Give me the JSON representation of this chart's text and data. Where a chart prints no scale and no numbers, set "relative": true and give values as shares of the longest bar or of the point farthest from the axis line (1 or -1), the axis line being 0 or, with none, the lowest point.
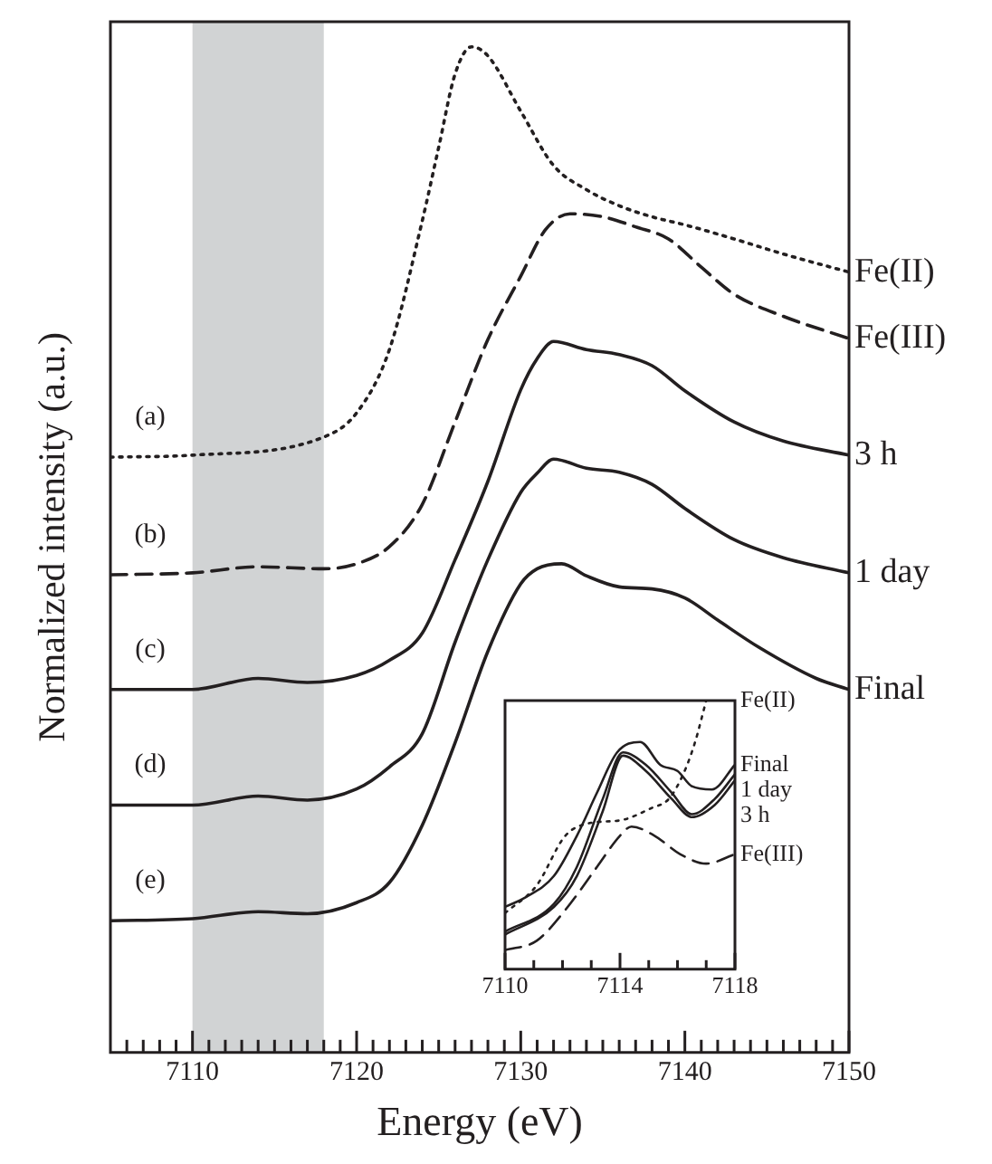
{
  "chart_data": [
    {
      "type": "line",
      "relative": true,
      "xlabel": "Energy (eV)",
      "ylabel": "Normalized intensity (a.u.)",
      "xlim": [
        7105,
        7150
      ],
      "xticks": [
        {
          "value": 7106,
          "label": null
        },
        {
          "value": 7107,
          "label": null
        },
        {
          "value": 7108,
          "label": null
        },
        {
          "value": 7109,
          "label": null
        },
        7110,
        {
          "value": 7111,
          "label": null
        },
        {
          "value": 7112,
          "label": null
        },
        {
          "value": 7113,
          "label": null
        },
        {
          "value": 7114,
          "label": null
        },
        {
          "value": 7115,
          "label": null
        },
        {
          "value": 7116,
          "label": null
        },
        {
          "value": 7117,
          "label": null
        },
        {
          "value": 7118,
          "label": null
        },
        {
          "value": 7119,
          "label": null
        },
        7120,
        {
          "value": 7121,
          "label": null
        },
        {
          "value": 7122,
          "label": null
        },
        {
          "value": 7123,
          "label": null
        },
        {
          "value": 7124,
          "label": null
        },
        {
          "value": 7125,
          "label": null
        },
        {
          "value": 7126,
          "label": null
        },
        {
          "value": 7127,
          "label": null
        },
        {
          "value": 7128,
          "label": null
        },
        {
          "value": 7129,
          "label": null
        },
        7130,
        {
          "value": 7131,
          "label": null
        },
        {
          "value": 7132,
          "label": null
        },
        {
          "value": 7133,
          "label": null
        },
        {
          "value": 7134,
          "label": null
        },
        {
          "value": 7135,
          "label": null
        },
        {
          "value": 7136,
          "label": null
        },
        {
          "value": 7137,
          "label": null
        },
        {
          "value": 7138,
          "label": null
        },
        {
          "value": 7139,
          "label": null
        },
        7140,
        {
          "value": 7141,
          "label": null
        },
        {
          "value": 7142,
          "label": null
        },
        {
          "value": 7143,
          "label": null
        },
        {
          "value": 7144,
          "label": null
        },
        {
          "value": 7145,
          "label": null
        },
        {
          "value": 7146,
          "label": null
        },
        {
          "value": 7147,
          "label": null
        },
        {
          "value": 7148,
          "label": null
        },
        {
          "value": 7149,
          "label": null
        },
        7150
      ],
      "bands": [
        {
          "axis": "x",
          "from": 7110,
          "to": 7118,
          "color": "#d1d3d4"
        }
      ],
      "annotations": [
        "(a)",
        "(b)",
        "(c)",
        "(d)",
        "(e)"
      ],
      "series": [
        {
          "name": "Fe(II)",
          "color": "#231f20",
          "line_style": "dotted",
          "x": [
            7105,
            7110,
            7118,
            7120,
            7122,
            7124,
            7125,
            7126,
            7127,
            7128,
            7130,
            7132,
            7134,
            7136,
            7138,
            7140,
            7143,
            7146,
            7150
          ],
          "values": [
            0.592,
            0.594,
            0.612,
            0.636,
            0.699,
            0.827,
            0.9,
            0.973,
            1.0,
            0.991,
            0.936,
            0.882,
            0.858,
            0.842,
            0.831,
            0.823,
            0.809,
            0.794,
            0.776
          ]
        },
        {
          "name": "Fe(III)",
          "color": "#231f20",
          "line_style": "dashed",
          "x": [
            7105,
            7110,
            7114,
            7118,
            7120,
            7122,
            7124,
            7126,
            7128,
            7130,
            7131.5,
            7133,
            7135,
            7137,
            7139,
            7141,
            7143,
            7146,
            7150
          ],
          "values": [
            0.475,
            0.477,
            0.483,
            0.481,
            0.486,
            0.503,
            0.545,
            0.627,
            0.709,
            0.772,
            0.818,
            0.834,
            0.831,
            0.821,
            0.809,
            0.781,
            0.754,
            0.732,
            0.71
          ]
        },
        {
          "name": "3 h",
          "color": "#231f20",
          "line_style": "solid",
          "x": [
            7105,
            7110,
            7114,
            7117,
            7120,
            7122,
            7124,
            7126,
            7128,
            7130,
            7131,
            7132,
            7134,
            7136,
            7138,
            7140,
            7143,
            7146,
            7150
          ],
          "values": [
            0.361,
            0.361,
            0.372,
            0.368,
            0.375,
            0.39,
            0.417,
            0.49,
            0.568,
            0.659,
            0.69,
            0.707,
            0.699,
            0.694,
            0.683,
            0.658,
            0.627,
            0.608,
            0.594
          ]
        },
        {
          "name": "1 day",
          "color": "#231f20",
          "line_style": "solid",
          "x": [
            7105,
            7110,
            7114,
            7117,
            7120,
            7122,
            7124,
            7126,
            7128,
            7130,
            7131,
            7132,
            7134,
            7136,
            7138,
            7140,
            7143,
            7146,
            7150
          ],
          "values": [
            0.246,
            0.246,
            0.255,
            0.251,
            0.262,
            0.284,
            0.317,
            0.408,
            0.49,
            0.557,
            0.576,
            0.59,
            0.581,
            0.577,
            0.565,
            0.541,
            0.51,
            0.492,
            0.477
          ]
        },
        {
          "name": "Final",
          "color": "#231f20",
          "line_style": "solid",
          "x": [
            7105,
            7110,
            7114,
            7117,
            7120,
            7122,
            7124,
            7126,
            7128,
            7130,
            7131,
            7132.5,
            7134,
            7136,
            7138,
            7140,
            7142,
            7144.5,
            7148,
            7150
          ],
          "values": [
            0.131,
            0.133,
            0.14,
            0.138,
            0.149,
            0.169,
            0.226,
            0.308,
            0.399,
            0.466,
            0.481,
            0.486,
            0.474,
            0.463,
            0.461,
            0.452,
            0.43,
            0.403,
            0.372,
            0.361
          ]
        }
      ]
    },
    {
      "type": "line",
      "relative": true,
      "xlim": [
        7110,
        7118
      ],
      "xticks": [
        7110,
        {
          "value": 7111,
          "label": null
        },
        {
          "value": 7112,
          "label": null
        },
        {
          "value": 7113,
          "label": null
        },
        7114,
        {
          "value": 7115,
          "label": null
        },
        {
          "value": 7116,
          "label": null
        },
        {
          "value": 7117,
          "label": null
        },
        7118
      ],
      "series": [
        {
          "name": "Fe(II)",
          "color": "#231f20",
          "line_style": "dotted",
          "x": [
            7110,
            7111.1,
            7112.1,
            7113,
            7114,
            7115.1,
            7115.7,
            7116.2,
            7116.6,
            7117
          ],
          "values": [
            0.209,
            0.312,
            0.497,
            0.545,
            0.554,
            0.6,
            0.634,
            0.726,
            0.841,
            1.0
          ]
        },
        {
          "name": "Final",
          "color": "#231f20",
          "line_style": "solid",
          "x": [
            7110,
            7110.7,
            7111.7,
            7112.5,
            7113.2,
            7113.9,
            7114.7,
            7115.4,
            7116,
            7116.5,
            7117.2,
            7118
          ],
          "values": [
            0.232,
            0.267,
            0.347,
            0.497,
            0.657,
            0.807,
            0.846,
            0.761,
            0.738,
            0.681,
            0.669,
            0.761
          ]
        },
        {
          "name": "1 day",
          "color": "#231f20",
          "line_style": "solid",
          "x": [
            7110,
            7111.7,
            7112.5,
            7113.4,
            7114.1,
            7114.9,
            7115.8,
            7116.5,
            7117.3,
            7118
          ],
          "values": [
            0.14,
            0.243,
            0.381,
            0.634,
            0.807,
            0.761,
            0.657,
            0.577,
            0.634,
            0.726
          ]
        },
        {
          "name": "3 h",
          "color": "#231f20",
          "line_style": "solid",
          "x": [
            7110,
            7111.7,
            7112.5,
            7113.4,
            7114.1,
            7114.9,
            7115.8,
            7116.5,
            7117.3,
            7118
          ],
          "values": [
            0.129,
            0.232,
            0.347,
            0.588,
            0.795,
            0.738,
            0.634,
            0.566,
            0.612,
            0.703
          ]
        },
        {
          "name": "Fe(III)",
          "color": "#231f20",
          "line_style": "dashed",
          "x": [
            7110,
            7111.1,
            7112.1,
            7113.2,
            7114,
            7114.4,
            7115.2,
            7116.1,
            7117,
            7118
          ],
          "values": [
            0.071,
            0.106,
            0.221,
            0.381,
            0.497,
            0.531,
            0.497,
            0.428,
            0.393,
            0.428
          ]
        }
      ]
    }
  ]
}
